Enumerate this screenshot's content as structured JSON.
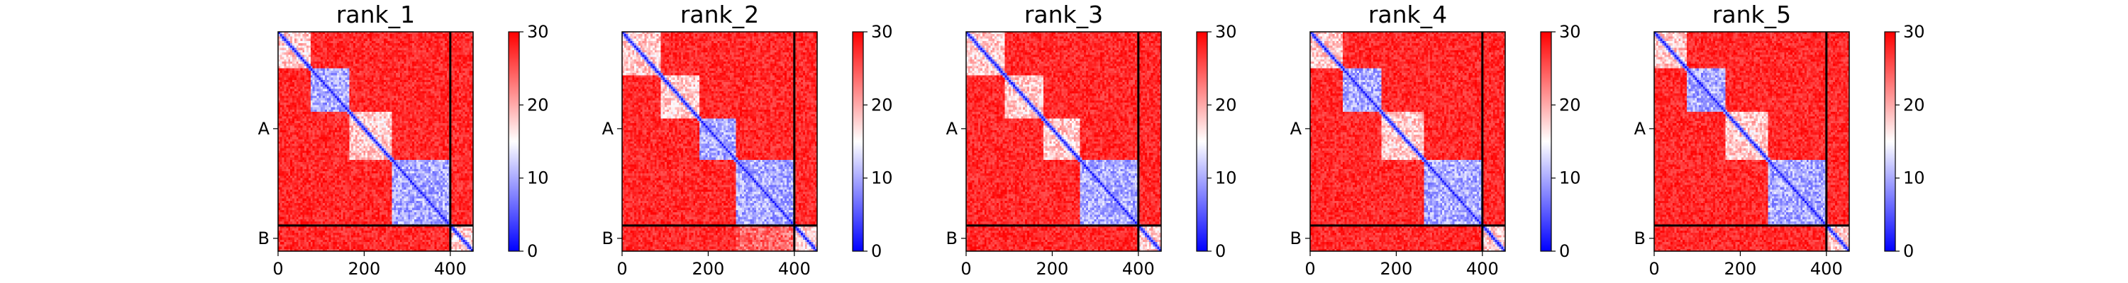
{
  "chart_data": {
    "type": "heatmap",
    "colormap": {
      "name": "bwr",
      "low": "#0000ff",
      "mid": "#ffffff",
      "high": "#ff0000"
    },
    "color_range": [
      0,
      30
    ],
    "colorbar_ticks": [
      "0",
      "10",
      "20",
      "30"
    ],
    "x_ticks": [
      {
        "value": 0,
        "label": "0"
      },
      {
        "value": 200,
        "label": "200"
      },
      {
        "value": 400,
        "label": "400"
      }
    ],
    "x_range": [
      0,
      453
    ],
    "y_range": [
      0,
      453
    ],
    "chains": [
      {
        "label": "A",
        "start": 0,
        "end": 400
      },
      {
        "label": "B",
        "start": 400,
        "end": 453
      }
    ],
    "chain_boundary": 400,
    "panels": [
      {
        "title": "rank_1",
        "domains": [
          [
            0,
            75
          ],
          [
            75,
            165
          ],
          [
            165,
            265
          ],
          [
            265,
            400
          ],
          [
            400,
            453
          ]
        ],
        "lowblocks": [
          [
            75,
            165
          ],
          [
            265,
            400
          ]
        ],
        "interchain_low": []
      },
      {
        "title": "rank_2",
        "domains": [
          [
            0,
            90
          ],
          [
            90,
            180
          ],
          [
            180,
            265
          ],
          [
            265,
            400
          ],
          [
            400,
            453
          ]
        ],
        "lowblocks": [
          [
            180,
            265
          ],
          [
            265,
            400
          ]
        ],
        "interchain_low": [
          [
            265,
            400
          ]
        ]
      },
      {
        "title": "rank_3",
        "domains": [
          [
            0,
            90
          ],
          [
            90,
            180
          ],
          [
            180,
            265
          ],
          [
            265,
            400
          ],
          [
            400,
            453
          ]
        ],
        "lowblocks": [
          [
            265,
            400
          ]
        ],
        "interchain_low": []
      },
      {
        "title": "rank_4",
        "domains": [
          [
            0,
            75
          ],
          [
            75,
            165
          ],
          [
            165,
            265
          ],
          [
            265,
            400
          ],
          [
            400,
            453
          ]
        ],
        "lowblocks": [
          [
            75,
            165
          ],
          [
            265,
            400
          ]
        ],
        "interchain_low": []
      },
      {
        "title": "rank_5",
        "domains": [
          [
            0,
            75
          ],
          [
            75,
            165
          ],
          [
            165,
            265
          ],
          [
            265,
            400
          ],
          [
            400,
            453
          ]
        ],
        "lowblocks": [
          [
            75,
            165
          ],
          [
            265,
            400
          ]
        ],
        "interchain_low": []
      }
    ]
  }
}
